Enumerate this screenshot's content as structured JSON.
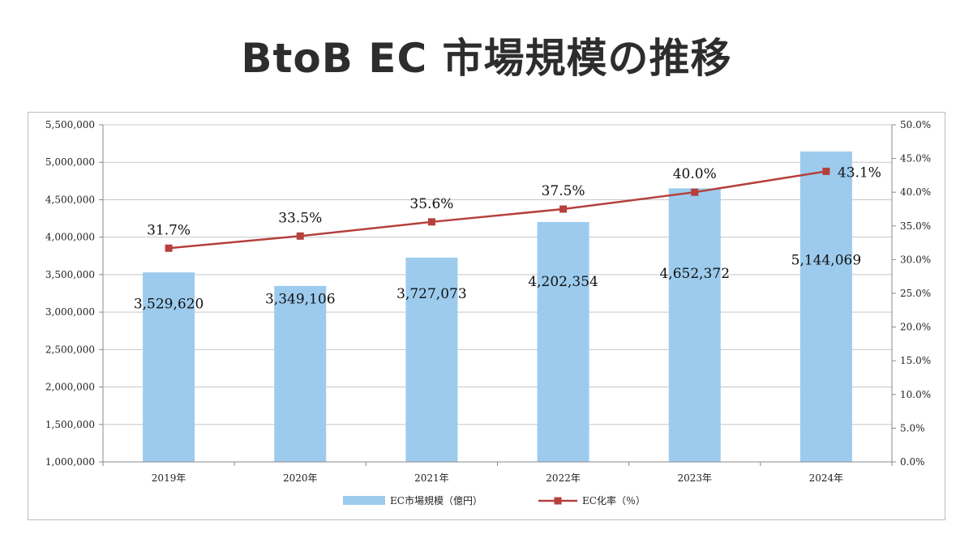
{
  "title": "BtoB EC 市場規模の推移",
  "chart_data": {
    "type": "bar",
    "categories": [
      "2019年",
      "2020年",
      "2021年",
      "2022年",
      "2023年",
      "2024年"
    ],
    "series": [
      {
        "name": "EC市場規模（億円）",
        "type": "bar",
        "axis": "left",
        "color": "#9ccbee",
        "values": [
          3529620,
          3349106,
          3727073,
          4202354,
          4652372,
          5144069
        ],
        "labels": [
          "3,529,620",
          "3,349,106",
          "3,727,073",
          "4,202,354",
          "4,652,372",
          "5,144,069"
        ]
      },
      {
        "name": "EC化率（％）",
        "type": "line",
        "axis": "right",
        "color": "#b5403c",
        "values": [
          31.7,
          33.5,
          35.6,
          37.5,
          40.0,
          43.1
        ],
        "labels": [
          "31.7%",
          "33.5%",
          "35.6%",
          "37.5%",
          "40.0%",
          "43.1%"
        ]
      }
    ],
    "y_left": {
      "lim": [
        1000000,
        5500000
      ],
      "ticks": [
        1000000,
        1500000,
        2000000,
        2500000,
        3000000,
        3500000,
        4000000,
        4500000,
        5000000,
        5500000
      ],
      "tick_labels": [
        "1,000,000",
        "1,500,000",
        "2,000,000",
        "2,500,000",
        "3,000,000",
        "3,500,000",
        "4,000,000",
        "4,500,000",
        "5,000,000",
        "5,500,000"
      ]
    },
    "y_right": {
      "lim": [
        0,
        50
      ],
      "ticks": [
        0,
        5,
        10,
        15,
        20,
        25,
        30,
        35,
        40,
        45,
        50
      ],
      "tick_labels": [
        "0.0%",
        "5.0%",
        "10.0%",
        "15.0%",
        "20.0%",
        "25.0%",
        "30.0%",
        "35.0%",
        "40.0%",
        "45.0%",
        "50.0%"
      ]
    },
    "grid": true,
    "legend_position": "bottom"
  }
}
